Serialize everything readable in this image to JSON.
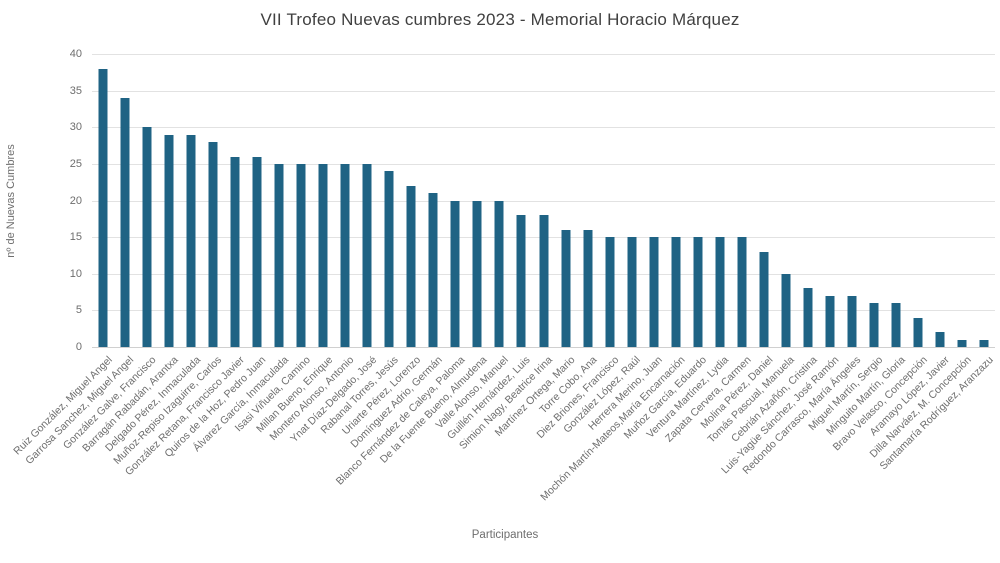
{
  "chart_data": {
    "type": "bar",
    "title": "VII Trofeo Nuevas cumbres 2023 - Memorial Horacio Márquez",
    "xlabel": "Participantes",
    "ylabel": "nº de Nuevas Cumbres",
    "ylim": [
      0,
      40
    ],
    "ytick_step": 5,
    "grid": true,
    "legend": false,
    "bar_color": "#1F6384",
    "categories": [
      "Ruiz González, Miguel Angel",
      "Garrosa Sanchez, Miguel Angel",
      "González Galve, Francisco",
      "Barragán Rabadán, Arantxa",
      "Delgado Pérez, Inmaculada",
      "Muñoz-Repiso Izaguirre, Carlos",
      "González Retana, Francisco Javier",
      "Quiros de la Hoz, Pedro Juan",
      "Álvarez García, Inmaculada",
      "Isasi Viñuela, Camino",
      "Millan Bueno, Enrique",
      "Montero Alonso, Antonio",
      "Ynat Díaz-Delgado, José",
      "Rabanal Torres, Jesús",
      "Uriarte Pérez, Lorenzo",
      "Domínguez Adrio, Germán",
      "Blanco Fernández de Caleya, Paloma",
      "De la Fuente Bueno, Almudena",
      "Valle Alonso, Manuel",
      "Guillén Hernández, Luis",
      "Simion Nagy, Beatrice Irina",
      "Martínez Ortega, Mario",
      "Torre Cobo, Ana",
      "Diez Briones, Francisco",
      "González López, Raúl",
      "Herrera Merino, Juan",
      "Mochón Martín-Mateos,María Encarnación",
      "Muñoz García, Eduardo",
      "Ventura Martínez, Lydia",
      "Zapata Cervera, Carmen",
      "Molina Pérez, Daniel",
      "Tomás Pascual, Manuela",
      "Cebrián Azañón, Cristina",
      "Luis-Yagüe Sánchez, José Ramón",
      "Redondo Carrasco, María Ángeles",
      "Miguel Martín, Sergio",
      "Minguito Martín, Gloria",
      "Bravo Velasco, Concepción",
      "Aramayo López, Javier",
      "Dilla Narváez, M. Concepción",
      "Santamaría Rodríguez, Aranzazu"
    ],
    "values": [
      38,
      34,
      30,
      29,
      29,
      28,
      26,
      26,
      25,
      25,
      25,
      25,
      25,
      24,
      22,
      21,
      20,
      20,
      20,
      18,
      18,
      16,
      16,
      15,
      15,
      15,
      15,
      15,
      15,
      15,
      13,
      10,
      8,
      7,
      7,
      6,
      6,
      4,
      2,
      1,
      1
    ]
  }
}
